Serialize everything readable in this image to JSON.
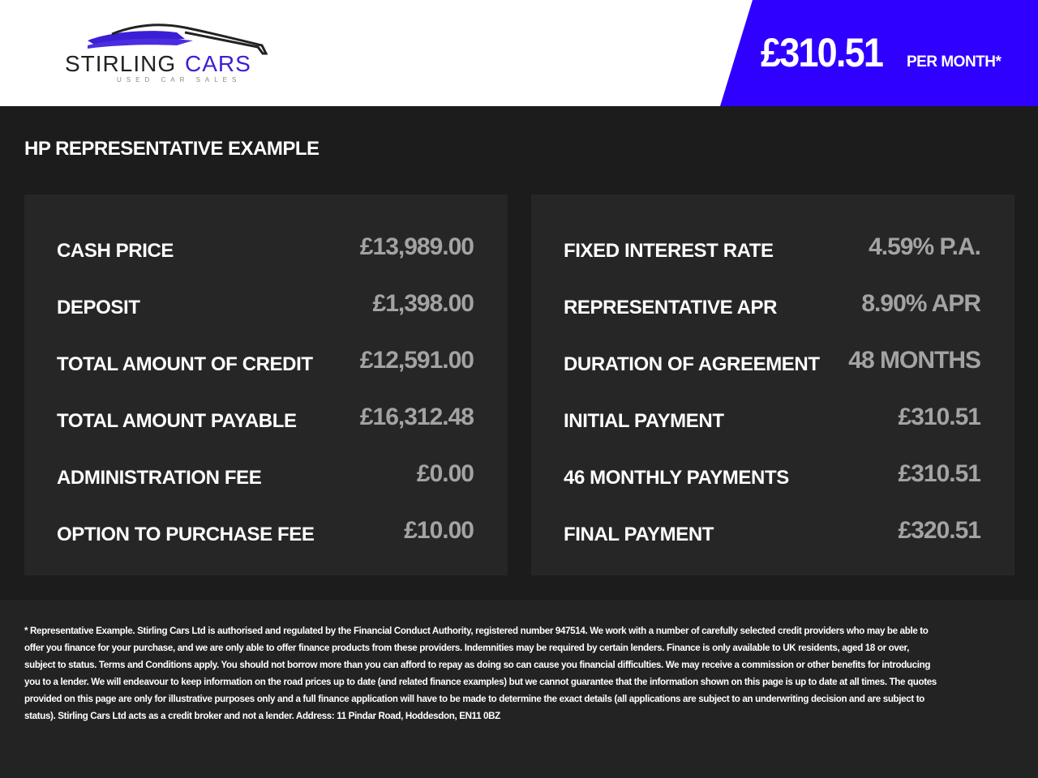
{
  "header": {
    "logo_text": "STIRLING CARS",
    "logo_tagline": "USED CAR SALES",
    "brand_color": "#2f00ff",
    "price": "£310.51",
    "price_suffix": "PER MONTH*"
  },
  "section_title": "HP REPRESENTATIVE EXAMPLE",
  "left_panel": [
    {
      "label": "CASH PRICE",
      "value": "£13,989.00"
    },
    {
      "label": "DEPOSIT",
      "value": "£1,398.00"
    },
    {
      "label": "TOTAL AMOUNT OF CREDIT",
      "value": "£12,591.00"
    },
    {
      "label": "TOTAL AMOUNT PAYABLE",
      "value": "£16,312.48"
    },
    {
      "label": "ADMINISTRATION FEE",
      "value": "£0.00"
    },
    {
      "label": "OPTION TO PURCHASE FEE",
      "value": "£10.00"
    }
  ],
  "right_panel": [
    {
      "label": "FIXED INTEREST RATE",
      "value": "4.59% P.A."
    },
    {
      "label": "REPRESENTATIVE APR",
      "value": "8.90% APR"
    },
    {
      "label": "DURATION OF AGREEMENT",
      "value": "48 MONTHS"
    },
    {
      "label": "INITIAL PAYMENT",
      "value": "£310.51"
    },
    {
      "label": "46 MONTHLY PAYMENTS",
      "value": "£310.51"
    },
    {
      "label": "FINAL PAYMENT",
      "value": "£320.51"
    }
  ],
  "disclaimer": "* Representative Example. Stirling Cars Ltd is authorised and regulated by the Financial Conduct Authority, registered number 947514. We work with a number of carefully selected credit providers who may be able to offer you finance for your purchase, and we are only able to offer finance products from these providers. Indemnities may be required by certain lenders. Finance is only available to UK residents, aged 18 or over, subject to status. Terms and Conditions apply. You should not borrow more than you can afford to repay as doing so can cause you financial difficulties. We may receive a commission or other benefits for introducing you to a lender. We will endeavour to keep information on the road prices up to date (and related finance examples) but we cannot guarantee that the information shown on this page is up to date at all times. The quotes provided on this page are only for illustrative purposes only and a full finance application will have to be made to determine the exact details (all applications are subject to an underwriting decision and are subject to status). Stirling Cars Ltd acts as a credit broker and not a lender. Address: 11 Pindar Road, Hoddesdon, EN11 0BZ"
}
